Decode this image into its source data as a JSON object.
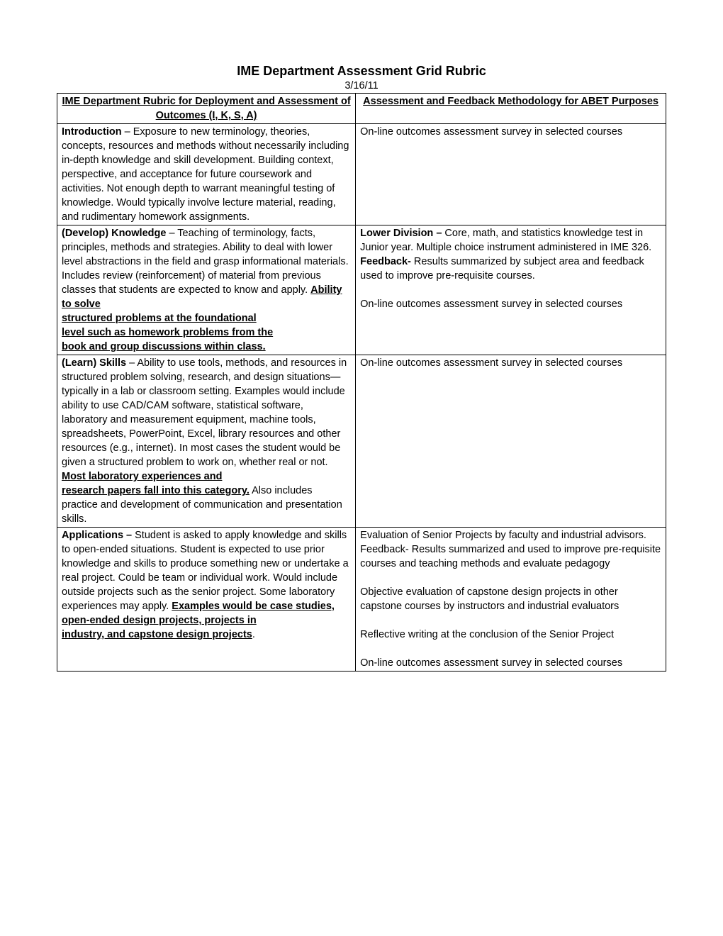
{
  "title": "IME Department Assessment Grid Rubric",
  "date": "3/16/11",
  "headers": {
    "left": "IME Department Rubric for Deployment and Assessment of Outcomes (I, K, S, A)",
    "right": "Assessment and Feedback Methodology for ABET Purposes"
  },
  "rows": {
    "intro": {
      "left_bold_lead": "Introduction",
      "left_rest": " – Exposure to new terminology, theories, concepts, resources and methods without necessarily including in-depth knowledge and skill development. Building context, perspective, and acceptance for future coursework and activities. Not enough depth to warrant meaningful testing of knowledge. Would typically involve lecture material, reading, and rudimentary homework assignments.",
      "right_text": "On-line outcomes assessment survey in selected courses"
    },
    "knowledge": {
      "left_bold_lead": "(Develop) Knowledge",
      "left_mid": " – Teaching of terminology, facts, principles, methods and strategies. Ability to deal with lower level abstractions in the field and grasp informational materials. Includes review (reinforcement) of material from previous classes that students are expected to know and apply. ",
      "left_bu_1": "Ability to solve ",
      "left_bu_2": "structured problems at the foundational ",
      "left_bu_3": "level such as homework problems from the ",
      "left_bu_4": "book and group discussions within class.",
      "right_lead_bold": "Lower Division – ",
      "right_lead_rest": "Core, math, and statistics knowledge test in Junior year. Multiple choice instrument administered in IME 326. ",
      "right_feedback_bold": "Feedback- ",
      "right_feedback_rest": "Results summarized by subject area and feedback used to improve pre-requisite courses.",
      "right_para2": "On-line outcomes assessment survey in selected courses"
    },
    "skills": {
      "left_bold_lead": "(Learn) Skills",
      "left_mid": " – Ability to use tools, methods, and resources in structured problem solving, research, and design situations—typically in a lab or classroom setting. Examples would include ability to use CAD/CAM software, statistical software, laboratory and measurement equipment, machine tools, spreadsheets, PowerPoint, Excel, library resources and other resources (e.g., internet). In most cases the student would be given a structured problem to work on, whether real or not. ",
      "left_bu_1": "Most laboratory experiences and ",
      "left_bu_2": "research papers fall into this category.",
      "left_tail": "  Also includes practice and development of communication and presentation skills.",
      "right_text": "On-line outcomes assessment survey in selected courses"
    },
    "applications": {
      "left_bold_lead": "Applications – ",
      "left_mid": "Student is asked to apply knowledge and skills to open-ended situations. Student is expected to use prior knowledge and skills to produce something new or undertake a real project. Could be team or individual work. Would include outside projects such as the senior project. Some laboratory experiences may apply. ",
      "left_bu_1": "Examples would be case studies, ",
      "left_bu_2": "open-ended design projects, projects in ",
      "left_bu_3": "industry, and capstone design projects",
      "left_tail_period": ".",
      "right_p1": "Evaluation of Senior Projects by faculty and industrial advisors. Feedback- Results summarized and used to improve pre-requisite courses and teaching methods and evaluate pedagogy",
      "right_p2": "Objective evaluation of capstone design projects in other capstone courses by instructors and industrial evaluators",
      "right_p3": "Reflective writing at the conclusion of the Senior Project",
      "right_p4": "On-line outcomes assessment survey in selected courses"
    }
  }
}
